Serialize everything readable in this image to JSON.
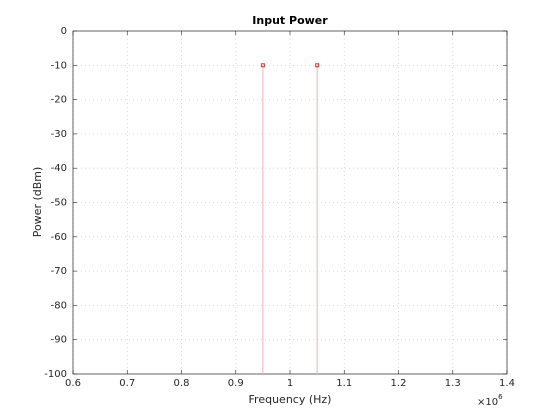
{
  "chart_data": {
    "type": "stem",
    "title": "Input Power",
    "x_label": "Frequency (Hz)",
    "y_label": "Power (dBm)",
    "x_multiplier": {
      "base": "×10",
      "exponent": "6"
    },
    "x": [
      950000,
      1050000
    ],
    "values": [
      -10,
      -10
    ],
    "color": "#e03030",
    "stem_color": "#f2b0b0",
    "xlim": [
      600000,
      1400000
    ],
    "xticks": [
      {
        "value": 600000,
        "label": "0.6"
      },
      {
        "value": 700000,
        "label": "0.7"
      },
      {
        "value": 800000,
        "label": "0.8"
      },
      {
        "value": 900000,
        "label": "0.9"
      },
      {
        "value": 1000000,
        "label": "1"
      },
      {
        "value": 1100000,
        "label": "1.1"
      },
      {
        "value": 1200000,
        "label": "1.2"
      },
      {
        "value": 1300000,
        "label": "1.3"
      },
      {
        "value": 1400000,
        "label": "1.4"
      }
    ],
    "ylim": [
      -100,
      0
    ],
    "yticks": [
      0,
      -10,
      -20,
      -30,
      -40,
      -50,
      -60,
      -70,
      -80,
      -90,
      -100
    ],
    "grid": true
  }
}
